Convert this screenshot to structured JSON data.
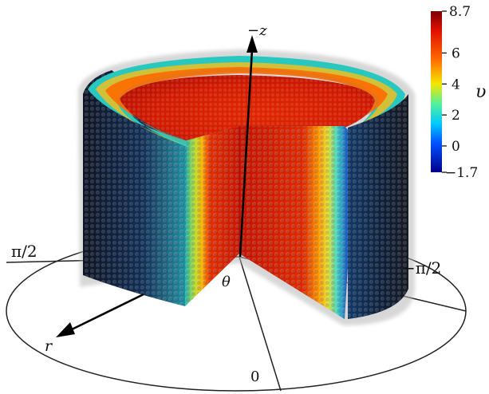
{
  "figure": {
    "axis_labels": {
      "z": "−z",
      "r": "r",
      "theta": "θ"
    },
    "angle_labels": {
      "zero": "0",
      "pi_over_2": "π/2",
      "minus_pi_over_2": "−π/2"
    },
    "colorbar": {
      "variable": "υ",
      "max_label": "8.7",
      "min_label": "−1.7",
      "min": -1.7,
      "max": 8.7,
      "ticks": [
        {
          "value": 6,
          "label": "6"
        },
        {
          "value": 4,
          "label": "4"
        },
        {
          "value": 2,
          "label": "2"
        },
        {
          "value": 0,
          "label": "0"
        }
      ],
      "colormap": "jet"
    }
  }
}
